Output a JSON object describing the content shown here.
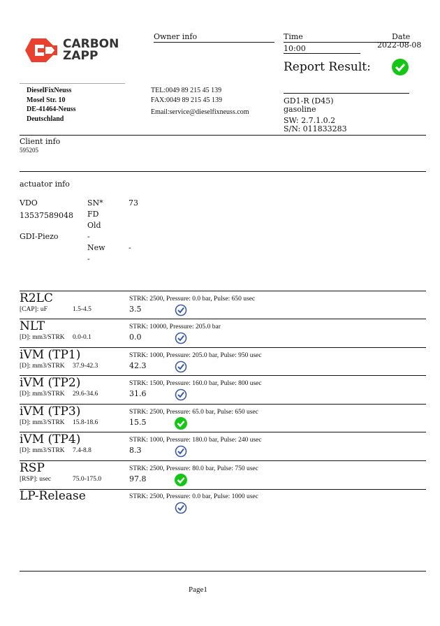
{
  "logo": {
    "line1": "CARBON",
    "line2": "ZAPP"
  },
  "owner": {
    "heading": "Owner info",
    "name": "DieselFixNeuss",
    "street": "Mosel Str. 10",
    "city": "DE-41464-Neuss",
    "country": "Deutschland",
    "tel": "TEL:0049 89 215 45 139",
    "fax": "FAX:0049 89 215 45 139",
    "email": "Email:service@dieselfixneuss.com"
  },
  "report": {
    "time_label": "Time",
    "time": "10:00",
    "date_label": "Date",
    "date": "2022-08-08",
    "result_label": "Report Result:",
    "result_status": "pass",
    "device": "GD1-R (D45)",
    "fuel": "gasoline",
    "sw": "SW: 2.7.1.0.2",
    "sn": "S/N: 011833283"
  },
  "client": {
    "heading": "Client info",
    "id": "595205"
  },
  "actuator": {
    "heading": "actuator info",
    "brand": "VDO",
    "number": "13537589048",
    "type": "GDI-Piezo",
    "sn_label": "SN*",
    "sn": "73",
    "fd": "FD",
    "old": "Old",
    "old_value": "-",
    "new": "New",
    "new_value": "-",
    "new_value2": "-"
  },
  "tests": [
    {
      "name": "R2LC",
      "unit": "[CAP]: uF",
      "range": "1.5-4.5",
      "params": "STRK: 2500, Pressure: 0.0 bar, Pulse: 650 usec",
      "value": "3.5",
      "status": "ok"
    },
    {
      "name": "NLT",
      "unit": "[D]: mm3/STRK",
      "range": "0.0-0.1",
      "params": "STRK: 10000, Pressure: 205.0 bar",
      "value": "0.0",
      "status": "ok"
    },
    {
      "name": "iVM (TP1)",
      "unit": "[D]: mm3/STRK",
      "range": "37.9-42.3",
      "params": "STRK: 1000, Pressure: 205.0 bar, Pulse: 950 usec",
      "value": "42.3",
      "status": "ok"
    },
    {
      "name": "iVM (TP2)",
      "unit": "[D]: mm3/STRK",
      "range": "29.6-34.6",
      "params": "STRK: 1500, Pressure: 160.0 bar, Pulse: 800 usec",
      "value": "31.6",
      "status": "ok"
    },
    {
      "name": "iVM (TP3)",
      "unit": "[D]: mm3/STRK",
      "range": "15.8-18.6",
      "params": "STRK: 2500, Pressure: 65.0 bar, Pulse: 650 usec",
      "value": "15.5",
      "status": "pass"
    },
    {
      "name": "iVM (TP4)",
      "unit": "[D]: mm3/STRK",
      "range": "7.4-8.8",
      "params": "STRK: 1000, Pressure: 180.0 bar, Pulse: 240 usec",
      "value": "8.3",
      "status": "ok"
    },
    {
      "name": "RSP",
      "unit": "[RSP]: usec",
      "range": "75.0-175.0",
      "params": "STRK: 2500, Pressure: 80.0 bar, Pulse: 750 usec",
      "value": "97.8",
      "status": "pass"
    },
    {
      "name": "LP-Release",
      "unit": "",
      "range": "",
      "params": "STRK: 2500, Pressure: 0.0 bar, Pulse: 1000 usec",
      "value": "",
      "status": "ok"
    }
  ],
  "colors": {
    "logo": "#e8412f",
    "ok": "#3a5aa8",
    "pass": "#16c616"
  },
  "footer": {
    "page": "Page1"
  }
}
